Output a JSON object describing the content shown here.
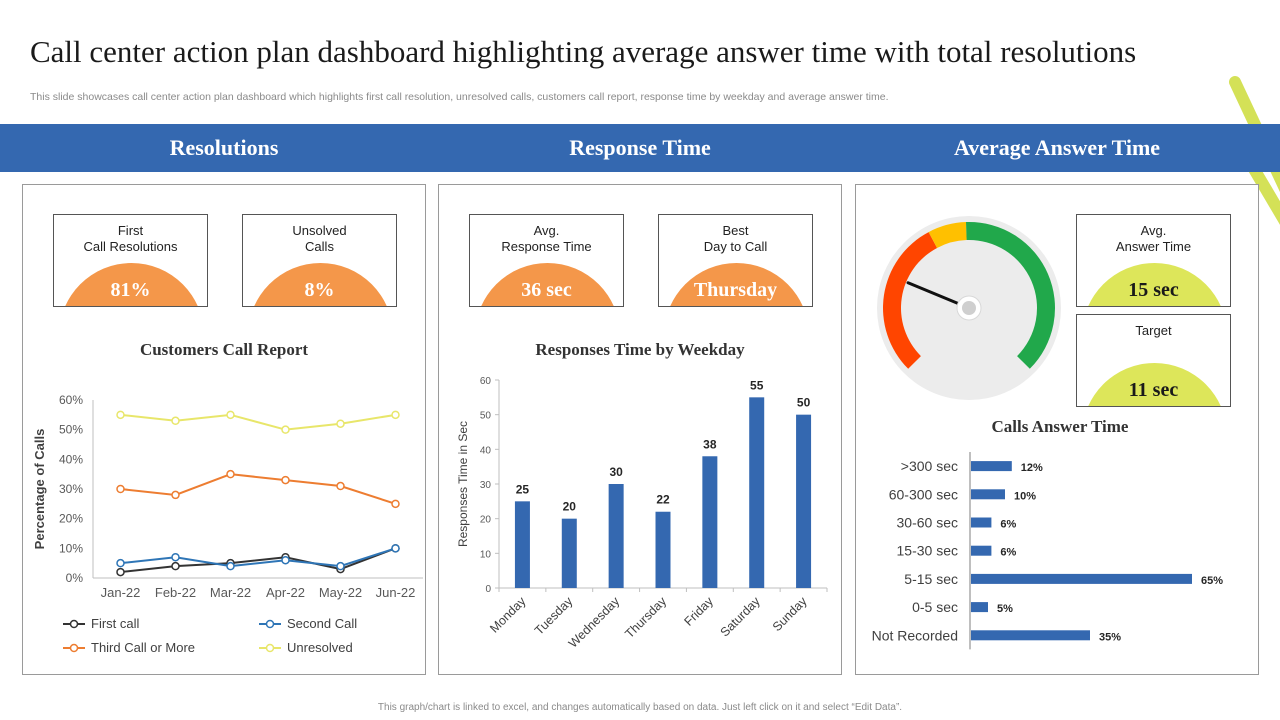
{
  "header": {
    "title": "Call center action plan dashboard highlighting average answer time with total resolutions",
    "subtitle": "This slide showcases call center action plan dashboard which highlights first call resolution, unresolved calls, customers call report, response time by weekday and average answer time."
  },
  "sections": {
    "resolutions": "Resolutions",
    "response_time": "Response Time",
    "average_answer_time": "Average Answer Time"
  },
  "kpis": {
    "first_call": {
      "label": "First\nCall Resolutions",
      "value": "81%",
      "color": "#f4974a"
    },
    "unsolved": {
      "label": "Unsolved\nCalls",
      "value": "8%",
      "color": "#f4974a"
    },
    "avg_response": {
      "label": "Avg.\nResponse  Time",
      "value": "36 sec",
      "color": "#f4974a"
    },
    "best_day": {
      "label": "Best\nDay to Call",
      "value": "Thursday",
      "color": "#f4974a"
    },
    "avg_answer": {
      "label": "Avg.\nAnswer Time",
      "value": "15 sec",
      "color": "#dde65a"
    },
    "target": {
      "label": "Target",
      "value": "11 sec",
      "color": "#dde65a"
    }
  },
  "colors": {
    "band": "#3468b0",
    "bar": "#3468b0",
    "first_call": "#333333",
    "second_call": "#2e75b6",
    "third_call": "#ed7d31",
    "unresolved": "#e8e66a",
    "gauge_red": "#ff4500",
    "gauge_yellow": "#ffc000",
    "gauge_green": "#21a84b",
    "deco": "#d4e157"
  },
  "gauge": {
    "value": 15,
    "min": 0,
    "max": 60
  },
  "chart_data": [
    {
      "type": "line",
      "title": "Customers Call Report",
      "xlabel": "",
      "ylabel": "Percentage of Calls",
      "categories": [
        "Jan-22",
        "Feb-22",
        "Mar-22",
        "Apr-22",
        "May-22",
        "Jun-22"
      ],
      "yticks": [
        "0%",
        "10%",
        "20%",
        "30%",
        "40%",
        "50%",
        "60%"
      ],
      "ylim": [
        0,
        60
      ],
      "series": [
        {
          "name": "First call",
          "values": [
            2,
            4,
            5,
            7,
            3,
            10
          ]
        },
        {
          "name": "Second Call",
          "values": [
            5,
            7,
            4,
            6,
            4,
            10
          ]
        },
        {
          "name": "Third Call or More",
          "values": [
            30,
            28,
            35,
            33,
            31,
            25
          ]
        },
        {
          "name": "Unresolved",
          "values": [
            55,
            53,
            55,
            50,
            52,
            55
          ]
        }
      ],
      "legend": "bottom"
    },
    {
      "type": "bar",
      "title": "Responses Time by Weekday",
      "xlabel": "",
      "ylabel": "Responses Time in Sec",
      "categories": [
        "Monday",
        "Tuesday",
        "Wednesday",
        "Thursday",
        "Friday",
        "Saturday",
        "Sunday"
      ],
      "values": [
        25,
        20,
        30,
        22,
        38,
        55,
        50
      ],
      "yticks": [
        "0",
        "10",
        "20",
        "30",
        "40",
        "50",
        "60"
      ],
      "ylim": [
        0,
        60
      ]
    },
    {
      "type": "bar",
      "orientation": "horizontal",
      "title": "Calls Answer Time",
      "categories": [
        ">300 sec",
        "60-300 sec",
        "30-60 sec",
        "15-30 sec",
        "5-15 sec",
        "0-5 sec",
        "Not Recorded"
      ],
      "values": [
        12,
        10,
        6,
        6,
        65,
        5,
        35
      ],
      "labels": [
        "12%",
        "10%",
        "6%",
        "6%",
        "65%",
        "5%",
        "35%"
      ],
      "xlim": [
        0,
        100
      ]
    }
  ],
  "footer": "This graph/chart is linked to excel, and changes automatically based on data. Just left click on it and select “Edit Data”."
}
